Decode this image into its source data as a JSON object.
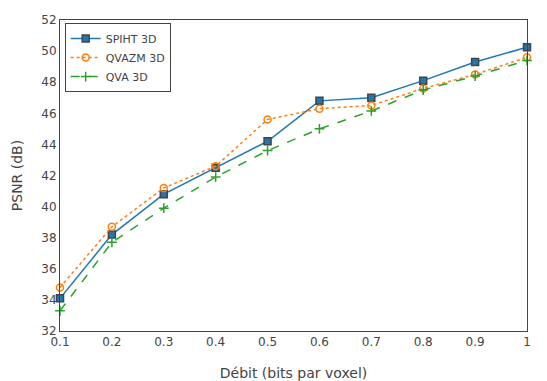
{
  "chart_data": {
    "type": "line",
    "x": [
      0.1,
      0.2,
      0.3,
      0.4,
      0.5,
      0.6,
      0.7,
      0.8,
      0.9,
      1.0
    ],
    "series": [
      {
        "name": "SPIHT 3D",
        "values": [
          34.1,
          38.2,
          40.8,
          42.5,
          44.2,
          46.8,
          47.0,
          48.1,
          49.3,
          50.25
        ],
        "marker": "square",
        "line_style": "solid"
      },
      {
        "name": "QVAZM 3D",
        "values": [
          34.8,
          38.7,
          41.2,
          42.6,
          45.6,
          46.3,
          46.5,
          47.6,
          48.5,
          49.6
        ],
        "marker": "circle-open",
        "line_style": "dotted"
      },
      {
        "name": "QVA 3D",
        "values": [
          33.3,
          37.7,
          39.9,
          41.9,
          43.6,
          45.0,
          46.15,
          47.5,
          48.4,
          49.4
        ],
        "marker": "plus",
        "line_style": "dashed"
      }
    ],
    "xlabel": "Débit (bits par voxel)",
    "ylabel": "PSNR (dB)",
    "xlim": [
      0.1,
      1.0
    ],
    "ylim": [
      32,
      52
    ],
    "xticks": [
      0.1,
      0.2,
      0.3,
      0.4,
      0.5,
      0.6,
      0.7,
      0.8,
      0.9,
      1.0
    ],
    "yticks": [
      32,
      34,
      36,
      38,
      40,
      42,
      44,
      46,
      48,
      50,
      52
    ],
    "legend": "upper left",
    "grid": false
  }
}
